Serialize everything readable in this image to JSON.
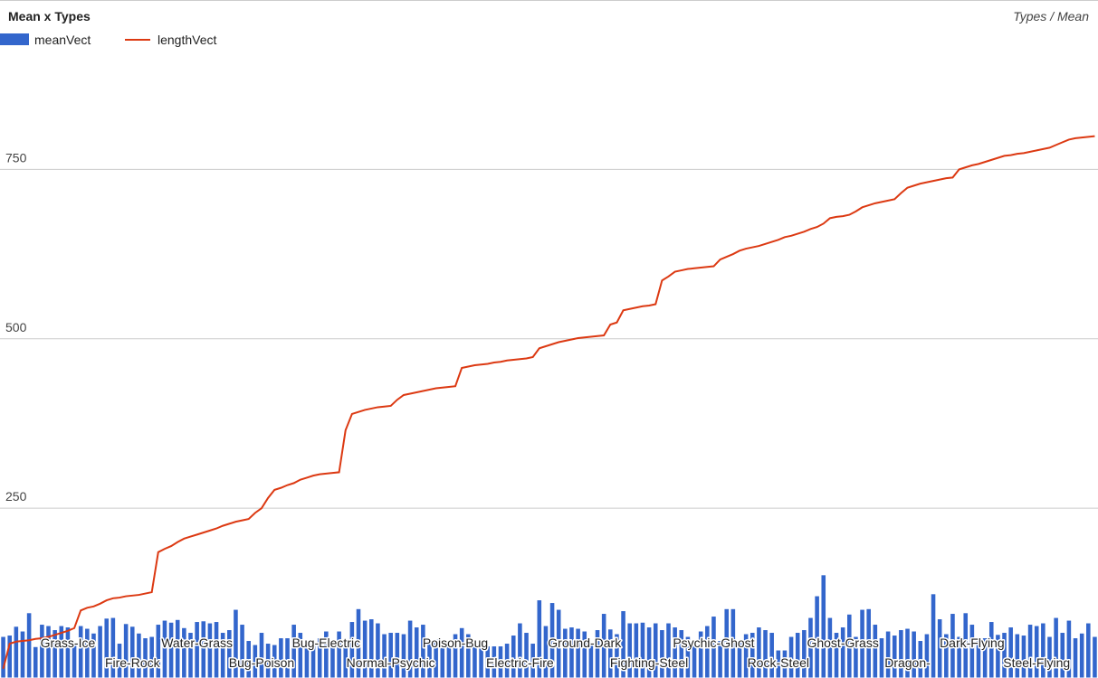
{
  "chart_data": {
    "type": "combo",
    "title": "Mean x Types",
    "subtitle": "Types / Mean",
    "categories": [
      null,
      null,
      null,
      null,
      null,
      null,
      null,
      null,
      null,
      null,
      "Grass-Ice",
      null,
      null,
      null,
      null,
      null,
      null,
      null,
      null,
      null,
      "Fire-Rock",
      null,
      null,
      null,
      null,
      null,
      null,
      null,
      null,
      null,
      "Water-Grass",
      null,
      null,
      null,
      null,
      null,
      null,
      null,
      null,
      null,
      "Bug-Poison",
      null,
      null,
      null,
      null,
      null,
      null,
      null,
      null,
      null,
      "Bug-Electric",
      null,
      null,
      null,
      null,
      null,
      null,
      null,
      null,
      null,
      "Normal-Psychic",
      null,
      null,
      null,
      null,
      null,
      null,
      null,
      null,
      null,
      "Poison-Bug",
      null,
      null,
      null,
      null,
      null,
      null,
      null,
      null,
      null,
      "Electric-Fire",
      null,
      null,
      null,
      null,
      null,
      null,
      null,
      null,
      null,
      "Ground-Dark",
      null,
      null,
      null,
      null,
      null,
      null,
      null,
      null,
      null,
      "Fighting-Steel",
      null,
      null,
      null,
      null,
      null,
      null,
      null,
      null,
      null,
      "Psychic-Ghost",
      null,
      null,
      null,
      null,
      null,
      null,
      null,
      null,
      null,
      "Rock-Steel",
      null,
      null,
      null,
      null,
      null,
      null,
      null,
      null,
      null,
      "Ghost-Grass",
      null,
      null,
      null,
      null,
      null,
      null,
      null,
      null,
      null,
      "Dragon-",
      null,
      null,
      null,
      null,
      null,
      null,
      null,
      null,
      null,
      "Dark-Flying",
      null,
      null,
      null,
      null,
      null,
      null,
      null,
      null,
      null,
      "Steel-Flying",
      null,
      null,
      null,
      null,
      null,
      null,
      null,
      null,
      null
    ],
    "series": [
      {
        "name": "meanVect",
        "color": "#3366cc",
        "type": "bar",
        "values": [
          60,
          62,
          75,
          68,
          95,
          45,
          78,
          76,
          70,
          76,
          74,
          50,
          76,
          72,
          65,
          76,
          87,
          88,
          50,
          79,
          75,
          65,
          58,
          60,
          78,
          84,
          81,
          85,
          73,
          66,
          82,
          83,
          80,
          82,
          66,
          70,
          100,
          78,
          54,
          48,
          66,
          50,
          48,
          58,
          58,
          78,
          66,
          50,
          50,
          58,
          68,
          50,
          68,
          48,
          82,
          101,
          84,
          86,
          80,
          64,
          66,
          66,
          64,
          84,
          74,
          78,
          54,
          56,
          50,
          47,
          64,
          73,
          64,
          46,
          46,
          46,
          46,
          46,
          50,
          62,
          80,
          66,
          50,
          114,
          76,
          110,
          100,
          72,
          74,
          72,
          68,
          47,
          70,
          94,
          71,
          64,
          98,
          80,
          80,
          81,
          74,
          80,
          70,
          80,
          74,
          70,
          60,
          48,
          68,
          76,
          90,
          54,
          101,
          101,
          53,
          64,
          66,
          74,
          70,
          66,
          40,
          40,
          60,
          66,
          70,
          88,
          120,
          151,
          88,
          66,
          74,
          93,
          60,
          100,
          101,
          78,
          58,
          68,
          62,
          70,
          72,
          68,
          54,
          64,
          123,
          86,
          64,
          94,
          60,
          95,
          78,
          58,
          58,
          82,
          63,
          66,
          74,
          64,
          62,
          78,
          76,
          80,
          60,
          88,
          66,
          84,
          58,
          65,
          80,
          60
        ]
      },
      {
        "name": "lengthVect",
        "color": "#dc3912",
        "type": "line",
        "values": [
          13,
          50,
          53,
          54,
          55,
          57,
          58,
          60,
          63,
          66,
          69,
          73,
          99,
          103,
          105,
          109,
          114,
          117,
          118,
          120,
          121,
          122,
          124,
          126,
          185,
          190,
          194,
          200,
          205,
          208,
          211,
          214,
          217,
          220,
          224,
          227,
          230,
          232,
          234,
          243,
          250,
          265,
          277,
          280,
          284,
          287,
          292,
          295,
          298,
          300,
          301,
          302,
          303,
          365,
          389,
          392,
          395,
          397,
          399,
          400,
          401,
          410,
          417,
          419,
          421,
          423,
          425,
          427,
          428,
          429,
          430,
          457,
          459,
          461,
          462,
          463,
          465,
          466,
          468,
          469,
          470,
          471,
          473,
          486,
          489,
          492,
          495,
          497,
          499,
          501,
          502,
          503,
          504,
          505,
          521,
          524,
          542,
          544,
          546,
          548,
          549,
          551,
          586,
          592,
          599,
          601,
          603,
          604,
          605,
          606,
          607,
          617,
          621,
          625,
          630,
          633,
          635,
          637,
          640,
          643,
          646,
          650,
          652,
          655,
          658,
          662,
          665,
          670,
          678,
          680,
          681,
          683,
          688,
          694,
          697,
          700,
          702,
          704,
          706,
          715,
          723,
          726,
          729,
          731,
          733,
          735,
          737,
          738,
          750,
          753,
          756,
          758,
          761,
          764,
          767,
          770,
          771,
          773,
          774,
          776,
          778,
          780,
          782,
          786,
          790,
          794,
          796,
          797,
          798,
          799
        ]
      }
    ],
    "ylim": [
      0,
      1000
    ],
    "yticks": [
      250,
      500,
      750
    ],
    "grid": true,
    "legend": "top-left"
  }
}
